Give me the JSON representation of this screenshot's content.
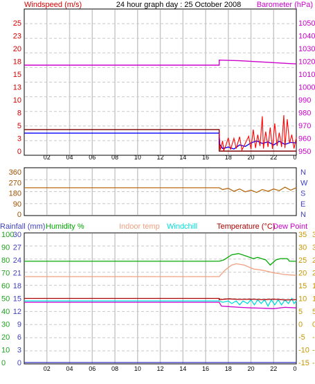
{
  "header": {
    "windspeed_label": "Windspeed (m/s)",
    "title": "24 hour graph day : 25 October 2008",
    "barometer_label": "Barometer (hPa)"
  },
  "colors": {
    "axis_red": "#d40000",
    "axis_magenta": "#cc00cc",
    "axis_brown": "#a05000",
    "axis_blue": "#4040c0",
    "axis_green": "#1e9e1e",
    "axis_gold": "#c89600",
    "windspeed": "#ff0000",
    "windgust": "#0000ff",
    "avgwind": "#7f0000",
    "barometer": "#cc00cc",
    "direction": "#b86a10",
    "humidity": "#00aa00",
    "indoor": "#f0a080",
    "windchill": "#00dddd",
    "temperature": "#aa0000",
    "dewpoint": "#cc00cc",
    "rainfall": "#3030c0",
    "grid": "#c8c8c8"
  },
  "chart_data": [
    {
      "id": "wind_baro",
      "type": "line",
      "title": "24 hour graph day : 25 October 2008",
      "ylabel": "Windspeed (m/s)",
      "y2label": "Barometer (hPa)",
      "x_ticks": [
        "02",
        "04",
        "06",
        "08",
        "10",
        "12",
        "14",
        "16",
        "18",
        "20",
        "22"
      ],
      "x_end_tick": "0",
      "xlim": [
        0,
        24
      ],
      "ylim": [
        0,
        25
      ],
      "y_ticks": [
        "0",
        "3",
        "5",
        "8",
        "10",
        "13",
        "15",
        "18",
        "20",
        "23",
        "25"
      ],
      "y2lim": [
        950,
        1050
      ],
      "y2_ticks": [
        "950",
        "960",
        "970",
        "980",
        "990",
        "1000",
        "1010",
        "1020",
        "1030",
        "1040",
        "1050"
      ],
      "series": [
        {
          "key": "barometer",
          "axis": "y2",
          "points": [
            [
              0,
              1017
            ],
            [
              17.2,
              1017
            ],
            [
              17.2,
              1021
            ],
            [
              19,
              1020.5
            ],
            [
              21,
              1019.5
            ],
            [
              23,
              1018.5
            ],
            [
              24,
              1018
            ]
          ]
        },
        {
          "key": "avgwind",
          "axis": "y",
          "points": [
            [
              0,
              4.2
            ],
            [
              17.2,
              4.2
            ],
            [
              17.2,
              0
            ],
            [
              24,
              0
            ]
          ]
        },
        {
          "key": "windgust",
          "axis": "y",
          "points": [
            [
              0,
              3.5
            ],
            [
              17.2,
              3.5
            ],
            [
              17.2,
              1.5
            ],
            [
              17.5,
              0.5
            ],
            [
              18,
              0.8
            ],
            [
              18.5,
              0.4
            ],
            [
              19,
              1.2
            ],
            [
              19.5,
              0.9
            ],
            [
              20,
              1.6
            ],
            [
              20.5,
              2.0
            ],
            [
              21,
              1.5
            ],
            [
              21.5,
              1.8
            ],
            [
              22,
              1.2
            ],
            [
              22.5,
              1.9
            ],
            [
              23,
              1.3
            ],
            [
              23.5,
              1.7
            ],
            [
              24,
              1.6
            ]
          ]
        },
        {
          "key": "windspeed",
          "axis": "y",
          "points": [
            [
              17.2,
              3.5
            ],
            [
              17.3,
              0.2
            ],
            [
              17.5,
              2.0
            ],
            [
              17.6,
              0.1
            ],
            [
              17.8,
              1.2
            ],
            [
              18.0,
              2.6
            ],
            [
              18.2,
              0.3
            ],
            [
              18.5,
              2.5
            ],
            [
              18.7,
              0.5
            ],
            [
              19.0,
              2.8
            ],
            [
              19.2,
              0.2
            ],
            [
              19.5,
              1.5
            ],
            [
              19.8,
              2.9
            ],
            [
              20.0,
              0.4
            ],
            [
              20.2,
              4.2
            ],
            [
              20.4,
              0.6
            ],
            [
              20.6,
              3.2
            ],
            [
              20.8,
              1.0
            ],
            [
              21.0,
              6.8
            ],
            [
              21.1,
              0.5
            ],
            [
              21.3,
              3.8
            ],
            [
              21.5,
              0.8
            ],
            [
              21.7,
              4.6
            ],
            [
              21.9,
              0.4
            ],
            [
              22.1,
              5.4
            ],
            [
              22.3,
              1.0
            ],
            [
              22.5,
              3.6
            ],
            [
              22.7,
              0.8
            ],
            [
              22.9,
              7.0
            ],
            [
              23.0,
              0.6
            ],
            [
              23.2,
              6.2
            ],
            [
              23.4,
              1.5
            ],
            [
              23.6,
              3.2
            ],
            [
              23.8,
              0.5
            ],
            [
              24,
              2.6
            ]
          ]
        }
      ]
    },
    {
      "id": "direction",
      "type": "line",
      "ylim": [
        0,
        360
      ],
      "y_ticks": [
        "0",
        "90",
        "180",
        "270",
        "360"
      ],
      "y2_ticks": [
        "N",
        "E",
        "S",
        "W",
        "N"
      ],
      "series": [
        {
          "key": "direction",
          "axis": "y",
          "points": [
            [
              0,
              225
            ],
            [
              17.2,
              225
            ],
            [
              17.5,
              210
            ],
            [
              18,
              220
            ],
            [
              18.5,
              195
            ],
            [
              19,
              215
            ],
            [
              19.5,
              190
            ],
            [
              20,
              205
            ],
            [
              20.5,
              185
            ],
            [
              21,
              210
            ],
            [
              21.5,
              195
            ],
            [
              22,
              215
            ],
            [
              22.5,
              200
            ],
            [
              23,
              230
            ],
            [
              23.5,
              205
            ],
            [
              24,
              225
            ]
          ]
        }
      ]
    },
    {
      "id": "temp_hum",
      "type": "line",
      "legend": [
        "Rainfall (mm)",
        "Humidity %",
        "Indoor temp",
        "Windchill",
        "Temperature (°C)",
        "Dew Point"
      ],
      "y_rain_ticks": [
        "0",
        "3",
        "6",
        "9",
        "12",
        "15",
        "18",
        "21",
        "24",
        "27",
        "30"
      ],
      "y_hum_ticks": [
        "0",
        "10",
        "20",
        "30",
        "40",
        "50",
        "60",
        "70",
        "80",
        "90",
        "100"
      ],
      "y_temp_ticks": [
        "-15",
        "-10",
        "-5",
        "0",
        "5",
        "10",
        "15",
        "20",
        "25",
        "30",
        "35"
      ],
      "y_r2_ticks": [
        "-15",
        "-10",
        "-5",
        "0",
        "5",
        "10",
        "15",
        "20",
        "25",
        "30",
        "35"
      ],
      "humidity_lim": [
        0,
        100
      ],
      "temp_lim": [
        -15,
        35
      ],
      "series": [
        {
          "key": "humidity",
          "axis": "hum",
          "points": [
            [
              0,
              79
            ],
            [
              17.2,
              79
            ],
            [
              17.6,
              80
            ],
            [
              18.3,
              84
            ],
            [
              18.9,
              85
            ],
            [
              19.6,
              83
            ],
            [
              20.2,
              81
            ],
            [
              20.6,
              82
            ],
            [
              21.3,
              80
            ],
            [
              21.7,
              76
            ],
            [
              22.2,
              80
            ],
            [
              22.6,
              81
            ],
            [
              23.2,
              81
            ],
            [
              23.4,
              79
            ],
            [
              24,
              79
            ]
          ]
        },
        {
          "key": "indoor",
          "axis": "temp",
          "points": [
            [
              0,
              18.5
            ],
            [
              17.2,
              18.5
            ],
            [
              17.7,
              21
            ],
            [
              18.3,
              23
            ],
            [
              18.7,
              23.5
            ],
            [
              19.4,
              23
            ],
            [
              20.2,
              21.5
            ],
            [
              21,
              21
            ],
            [
              22,
              20
            ],
            [
              23,
              19.3
            ],
            [
              24,
              19
            ]
          ]
        },
        {
          "key": "windchill",
          "axis": "temp",
          "points": [
            [
              0,
              9
            ],
            [
              17.2,
              9
            ],
            [
              17.5,
              8.5
            ],
            [
              18,
              9
            ],
            [
              18.3,
              8
            ],
            [
              18.7,
              9
            ],
            [
              19,
              7.5
            ],
            [
              19.3,
              9
            ],
            [
              19.7,
              8
            ],
            [
              20,
              9.5
            ],
            [
              20.3,
              7.5
            ],
            [
              20.6,
              9.5
            ],
            [
              20.9,
              8
            ],
            [
              21.2,
              9.5
            ],
            [
              21.5,
              7
            ],
            [
              21.8,
              9.5
            ],
            [
              22.1,
              7.5
            ],
            [
              22.4,
              9.5
            ],
            [
              22.7,
              7.5
            ],
            [
              23,
              9.5
            ],
            [
              23.3,
              8
            ],
            [
              23.6,
              10
            ],
            [
              23.8,
              8
            ],
            [
              24,
              9
            ]
          ]
        },
        {
          "key": "temperature",
          "axis": "temp",
          "points": [
            [
              0,
              10
            ],
            [
              17.2,
              10
            ],
            [
              17.2,
              9.5
            ],
            [
              18,
              9.8
            ],
            [
              19,
              9.6
            ],
            [
              20,
              9.7
            ],
            [
              21,
              9.5
            ],
            [
              22,
              9.7
            ],
            [
              23,
              9.4
            ],
            [
              24,
              9.5
            ]
          ]
        },
        {
          "key": "dewpoint",
          "axis": "temp",
          "points": [
            [
              0,
              8.5
            ],
            [
              17.2,
              8.5
            ],
            [
              17.4,
              7
            ],
            [
              18,
              6.8
            ],
            [
              19,
              6.5
            ],
            [
              20,
              6.3
            ],
            [
              21,
              6.2
            ],
            [
              22,
              6
            ],
            [
              23,
              6.5
            ],
            [
              24,
              6.3
            ]
          ]
        },
        {
          "key": "rainfall",
          "axis": "rain",
          "points": [
            [
              0,
              0
            ],
            [
              24,
              0
            ]
          ]
        }
      ]
    }
  ]
}
